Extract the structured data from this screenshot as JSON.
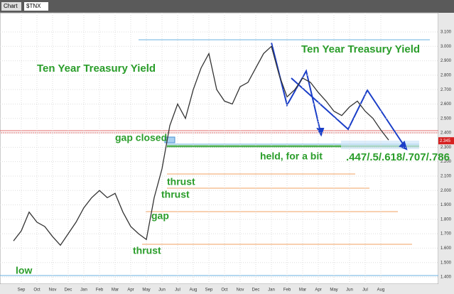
{
  "toolbar": {
    "tab": "Chart",
    "symbol": "$TNX"
  },
  "chart_data": {
    "type": "line",
    "categories": [
      null,
      "Sep",
      null,
      "Oct",
      null,
      "Nov",
      null,
      "Dec",
      null,
      "Jan",
      null,
      "Feb",
      null,
      "Mar",
      null,
      "Apr",
      null,
      "May",
      null,
      "Jun",
      null,
      "Jul",
      null,
      "Aug",
      null,
      "Sep",
      null,
      "Oct",
      null,
      "Nov",
      null,
      "Dec",
      null,
      "Jan",
      null,
      "Feb",
      null,
      "Mar",
      null,
      "Apr",
      null,
      "May",
      null,
      "Jun",
      null,
      "Jul",
      null,
      "Aug",
      null
    ],
    "series": [
      {
        "name": "$TNX",
        "color": "#333333",
        "values": [
          1.65,
          1.72,
          1.85,
          1.78,
          1.75,
          1.68,
          1.62,
          1.7,
          1.78,
          1.88,
          1.95,
          2.0,
          1.95,
          1.98,
          1.85,
          1.75,
          1.7,
          1.66,
          1.95,
          2.15,
          2.45,
          2.6,
          2.5,
          2.7,
          2.85,
          2.95,
          2.7,
          2.62,
          2.6,
          2.72,
          2.75,
          2.85,
          2.95,
          3.0,
          2.8,
          2.65,
          2.7,
          2.78,
          2.75,
          2.68,
          2.62,
          2.55,
          2.52,
          2.58,
          2.62,
          2.55,
          2.5,
          2.42,
          2.35
        ]
      }
    ],
    "ylim": [
      1.4,
      3.1
    ],
    "yticks": [
      {
        "value": 1.4,
        "label": "1.400"
      },
      {
        "value": 1.5,
        "label": "1.500"
      },
      {
        "value": 1.6,
        "label": "1.600"
      },
      {
        "value": 1.7,
        "label": "1.700"
      },
      {
        "value": 1.8,
        "label": "1.800"
      },
      {
        "value": 1.9,
        "label": "1.900"
      },
      {
        "value": 2.0,
        "label": "2.000"
      },
      {
        "value": 2.1,
        "label": "2.100"
      },
      {
        "value": 2.2,
        "label": "2.200"
      },
      {
        "value": 2.3,
        "label": "2.300"
      },
      {
        "value": 2.4,
        "label": "2.400"
      },
      {
        "value": 2.5,
        "label": "2.500"
      },
      {
        "value": 2.6,
        "label": "2.600"
      },
      {
        "value": 2.7,
        "label": "2.700"
      },
      {
        "value": 2.8,
        "label": "2.800"
      },
      {
        "value": 2.9,
        "label": "2.900"
      },
      {
        "value": 3.0,
        "label": "3.000"
      },
      {
        "value": 3.1,
        "label": "3.100"
      }
    ],
    "grid": true,
    "last_value": {
      "value": 2.345,
      "label": "2.345"
    },
    "annotations": [
      "Ten Year Treasury Yield",
      "Ten Year Treasury Yield",
      "gap closed",
      "thrust",
      "thrust",
      "gap",
      "thrust",
      "low",
      "held, for a bit",
      ".447/.5/.618/.707/.786"
    ]
  }
}
